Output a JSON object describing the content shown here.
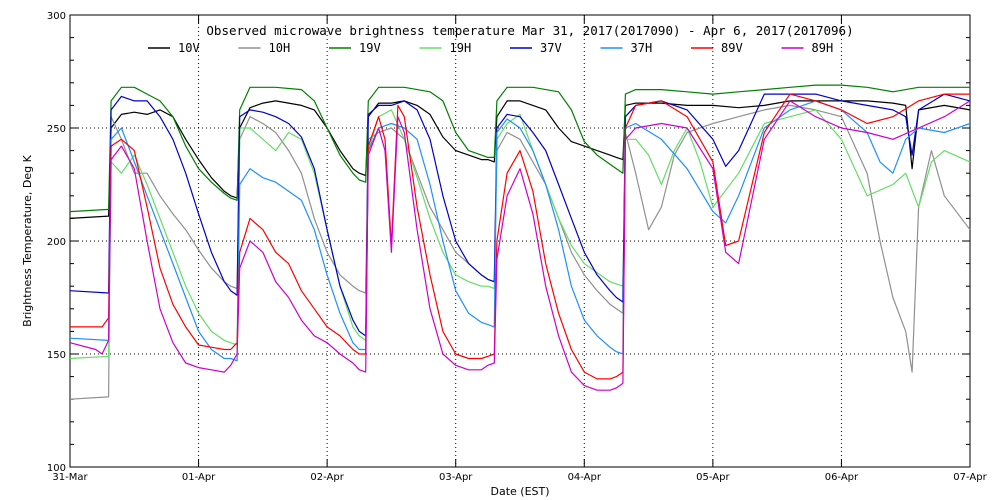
{
  "chart_data": {
    "type": "line",
    "title": "Observed microwave brightness temperature Mar 31, 2017(2017090) - Apr  6, 2017(2017096)",
    "xlabel": "Date (EST)",
    "ylabel": "Brightness Temperature, Deg K",
    "ylim": [
      100,
      300
    ],
    "xlim": [
      0,
      7
    ],
    "yticks": [
      "100",
      "150",
      "200",
      "250",
      "300"
    ],
    "xticks": [
      "31-Mar",
      "01-Apr",
      "02-Apr",
      "03-Apr",
      "04-Apr",
      "05-Apr",
      "06-Apr",
      "07-Apr"
    ],
    "grid": true,
    "legend_position": "top",
    "series": [
      {
        "name": "10V",
        "color": "#000000",
        "x": [
          0,
          0.3,
          0.32,
          0.4,
          0.5,
          0.6,
          0.7,
          0.8,
          0.9,
          1.0,
          1.1,
          1.2,
          1.25,
          1.3,
          1.32,
          1.4,
          1.5,
          1.6,
          1.7,
          1.8,
          1.9,
          2.0,
          2.1,
          2.2,
          2.25,
          2.3,
          2.32,
          2.4,
          2.5,
          2.6,
          2.7,
          2.8,
          2.9,
          3.0,
          3.1,
          3.2,
          3.25,
          3.3,
          3.32,
          3.4,
          3.5,
          3.6,
          3.7,
          3.8,
          3.9,
          4.0,
          4.1,
          4.2,
          4.25,
          4.3,
          4.32,
          4.4,
          4.6,
          4.8,
          5.0,
          5.2,
          5.4,
          5.6,
          5.8,
          6.0,
          6.2,
          6.4,
          6.5,
          6.55,
          6.6,
          6.8,
          7.0
        ],
        "y": [
          210,
          211,
          250,
          256,
          257,
          256,
          258,
          255,
          245,
          236,
          228,
          222,
          220,
          219,
          250,
          259,
          261,
          262,
          261,
          260,
          258,
          250,
          240,
          232,
          230,
          229,
          255,
          261,
          261,
          262,
          260,
          256,
          246,
          240,
          238,
          236,
          236,
          235,
          255,
          262,
          262,
          260,
          258,
          250,
          244,
          242,
          240,
          238,
          237,
          236,
          260,
          261,
          261,
          260,
          260,
          259,
          260,
          262,
          262,
          262,
          262,
          261,
          260,
          232,
          258,
          260,
          258
        ]
      },
      {
        "name": "10H",
        "color": "#909090",
        "x": [
          0,
          0.3,
          0.32,
          0.4,
          0.5,
          0.6,
          0.7,
          0.8,
          0.9,
          1.0,
          1.1,
          1.2,
          1.25,
          1.3,
          1.32,
          1.4,
          1.5,
          1.6,
          1.7,
          1.8,
          1.9,
          2.0,
          2.1,
          2.2,
          2.25,
          2.3,
          2.32,
          2.4,
          2.5,
          2.6,
          2.7,
          2.8,
          2.9,
          3.0,
          3.1,
          3.2,
          3.25,
          3.3,
          3.32,
          3.4,
          3.5,
          3.6,
          3.7,
          3.8,
          3.9,
          4.0,
          4.1,
          4.2,
          4.25,
          4.3,
          4.32,
          4.4,
          4.5,
          4.6,
          4.7,
          4.8,
          5.0,
          5.2,
          5.4,
          5.6,
          5.8,
          6.0,
          6.2,
          6.3,
          6.4,
          6.5,
          6.55,
          6.6,
          6.7,
          6.8,
          7.0
        ],
        "y": [
          130,
          131,
          255,
          245,
          230,
          230,
          220,
          212,
          205,
          196,
          188,
          182,
          180,
          179,
          245,
          255,
          252,
          248,
          240,
          230,
          210,
          195,
          185,
          180,
          178,
          177,
          245,
          248,
          250,
          245,
          230,
          215,
          205,
          195,
          190,
          185,
          183,
          182,
          240,
          248,
          245,
          235,
          225,
          210,
          195,
          185,
          178,
          172,
          170,
          168,
          248,
          230,
          205,
          215,
          238,
          248,
          252,
          255,
          258,
          260,
          258,
          255,
          230,
          200,
          175,
          160,
          142,
          215,
          240,
          220,
          205
        ]
      },
      {
        "name": "19V",
        "color": "#008000",
        "x": [
          0,
          0.3,
          0.32,
          0.4,
          0.5,
          0.6,
          0.7,
          0.8,
          0.9,
          1.0,
          1.1,
          1.2,
          1.25,
          1.3,
          1.32,
          1.4,
          1.6,
          1.8,
          1.9,
          2.0,
          2.1,
          2.2,
          2.25,
          2.3,
          2.32,
          2.4,
          2.6,
          2.8,
          2.9,
          3.0,
          3.1,
          3.2,
          3.25,
          3.3,
          3.32,
          3.4,
          3.6,
          3.8,
          3.9,
          4.0,
          4.1,
          4.2,
          4.25,
          4.3,
          4.32,
          4.4,
          4.6,
          4.8,
          5.0,
          5.2,
          5.4,
          5.6,
          5.8,
          6.0,
          6.2,
          6.4,
          6.6,
          6.8,
          7.0
        ],
        "y": [
          213,
          214,
          262,
          268,
          268,
          265,
          262,
          255,
          242,
          232,
          226,
          221,
          219,
          218,
          258,
          268,
          268,
          267,
          262,
          250,
          238,
          230,
          227,
          226,
          262,
          268,
          268,
          266,
          262,
          248,
          240,
          238,
          237,
          237,
          262,
          268,
          268,
          266,
          258,
          244,
          238,
          234,
          232,
          230,
          265,
          267,
          267,
          266,
          265,
          266,
          267,
          268,
          269,
          269,
          268,
          266,
          268,
          268,
          268
        ]
      },
      {
        "name": "19H",
        "color": "#66dd66",
        "x": [
          0,
          0.3,
          0.32,
          0.4,
          0.5,
          0.6,
          0.7,
          0.8,
          0.9,
          1.0,
          1.1,
          1.2,
          1.25,
          1.3,
          1.32,
          1.4,
          1.5,
          1.6,
          1.7,
          1.8,
          1.9,
          2.0,
          2.1,
          2.2,
          2.25,
          2.3,
          2.32,
          2.4,
          2.5,
          2.6,
          2.7,
          2.8,
          2.9,
          3.0,
          3.1,
          3.2,
          3.25,
          3.3,
          3.32,
          3.4,
          3.5,
          3.6,
          3.7,
          3.8,
          3.9,
          4.0,
          4.1,
          4.2,
          4.25,
          4.3,
          4.32,
          4.4,
          4.5,
          4.6,
          4.7,
          4.8,
          4.9,
          5.0,
          5.2,
          5.4,
          5.6,
          5.8,
          6.0,
          6.2,
          6.4,
          6.5,
          6.6,
          6.7,
          6.8,
          7.0
        ],
        "y": [
          148,
          149,
          235,
          230,
          238,
          225,
          210,
          195,
          180,
          168,
          160,
          156,
          155,
          154,
          250,
          250,
          245,
          240,
          248,
          245,
          230,
          205,
          180,
          162,
          158,
          156,
          240,
          255,
          258,
          245,
          228,
          210,
          195,
          185,
          182,
          180,
          180,
          179,
          245,
          252,
          256,
          240,
          225,
          210,
          198,
          190,
          186,
          182,
          181,
          180,
          245,
          245,
          238,
          225,
          240,
          250,
          235,
          215,
          230,
          252,
          255,
          258,
          245,
          220,
          225,
          230,
          215,
          235,
          240,
          235
        ]
      },
      {
        "name": "37V",
        "color": "#0000cc",
        "x": [
          0,
          0.3,
          0.32,
          0.4,
          0.5,
          0.6,
          0.7,
          0.8,
          0.9,
          1.0,
          1.1,
          1.2,
          1.25,
          1.3,
          1.32,
          1.4,
          1.5,
          1.6,
          1.7,
          1.8,
          1.9,
          2.0,
          2.1,
          2.2,
          2.25,
          2.3,
          2.32,
          2.4,
          2.5,
          2.6,
          2.7,
          2.8,
          2.9,
          3.0,
          3.1,
          3.2,
          3.25,
          3.3,
          3.32,
          3.4,
          3.5,
          3.6,
          3.7,
          3.8,
          3.9,
          4.0,
          4.1,
          4.2,
          4.25,
          4.3,
          4.32,
          4.4,
          4.6,
          4.8,
          5.0,
          5.1,
          5.2,
          5.4,
          5.6,
          5.8,
          6.0,
          6.2,
          6.4,
          6.5,
          6.55,
          6.6,
          6.8,
          7.0
        ],
        "y": [
          178,
          177,
          258,
          264,
          262,
          262,
          255,
          245,
          230,
          212,
          195,
          182,
          178,
          176,
          255,
          258,
          257,
          255,
          252,
          246,
          232,
          205,
          180,
          165,
          160,
          158,
          256,
          260,
          260,
          262,
          258,
          245,
          220,
          200,
          190,
          185,
          183,
          182,
          250,
          256,
          255,
          248,
          240,
          225,
          210,
          195,
          185,
          178,
          175,
          173,
          255,
          260,
          262,
          258,
          245,
          233,
          240,
          265,
          265,
          265,
          262,
          260,
          258,
          255,
          238,
          258,
          265,
          262
        ]
      },
      {
        "name": "37H",
        "color": "#1e90ff",
        "x": [
          0,
          0.3,
          0.32,
          0.4,
          0.5,
          0.6,
          0.7,
          0.8,
          0.9,
          1.0,
          1.1,
          1.2,
          1.25,
          1.3,
          1.32,
          1.4,
          1.5,
          1.6,
          1.7,
          1.8,
          1.9,
          2.0,
          2.1,
          2.2,
          2.25,
          2.3,
          2.32,
          2.4,
          2.5,
          2.6,
          2.7,
          2.8,
          2.9,
          3.0,
          3.1,
          3.2,
          3.25,
          3.3,
          3.32,
          3.4,
          3.5,
          3.6,
          3.7,
          3.8,
          3.9,
          4.0,
          4.1,
          4.2,
          4.25,
          4.3,
          4.32,
          4.4,
          4.6,
          4.8,
          5.0,
          5.1,
          5.2,
          5.4,
          5.6,
          5.8,
          6.0,
          6.2,
          6.3,
          6.4,
          6.5,
          6.6,
          6.8,
          7.0
        ],
        "y": [
          157,
          156,
          245,
          250,
          235,
          220,
          205,
          190,
          175,
          160,
          152,
          148,
          148,
          147,
          225,
          232,
          228,
          226,
          222,
          218,
          205,
          185,
          168,
          155,
          152,
          152,
          240,
          250,
          252,
          250,
          245,
          225,
          200,
          178,
          168,
          164,
          163,
          162,
          248,
          254,
          250,
          240,
          225,
          205,
          180,
          165,
          158,
          153,
          151,
          150,
          250,
          252,
          245,
          232,
          213,
          208,
          220,
          250,
          258,
          262,
          258,
          248,
          235,
          230,
          245,
          250,
          248,
          252
        ]
      },
      {
        "name": "89V",
        "color": "#ff0000",
        "x": [
          0,
          0.25,
          0.3,
          0.32,
          0.4,
          0.5,
          0.6,
          0.7,
          0.8,
          0.9,
          1.0,
          1.1,
          1.2,
          1.25,
          1.3,
          1.32,
          1.4,
          1.5,
          1.6,
          1.7,
          1.8,
          1.9,
          2.0,
          2.1,
          2.2,
          2.25,
          2.3,
          2.32,
          2.4,
          2.45,
          2.5,
          2.55,
          2.6,
          2.7,
          2.8,
          2.9,
          3.0,
          3.1,
          3.2,
          3.25,
          3.3,
          3.32,
          3.4,
          3.5,
          3.6,
          3.7,
          3.8,
          3.9,
          4.0,
          4.1,
          4.2,
          4.25,
          4.3,
          4.32,
          4.4,
          4.6,
          4.8,
          5.0,
          5.1,
          5.2,
          5.4,
          5.6,
          5.8,
          6.0,
          6.2,
          6.4,
          6.6,
          6.8,
          7.0
        ],
        "y": [
          162,
          162,
          166,
          242,
          245,
          240,
          215,
          188,
          172,
          162,
          154,
          153,
          152,
          152,
          155,
          195,
          210,
          205,
          195,
          190,
          178,
          170,
          162,
          158,
          152,
          150,
          150,
          242,
          255,
          245,
          198,
          260,
          255,
          215,
          185,
          160,
          150,
          148,
          148,
          149,
          150,
          200,
          230,
          240,
          222,
          190,
          168,
          152,
          142,
          139,
          139,
          140,
          142,
          250,
          260,
          262,
          255,
          235,
          198,
          200,
          248,
          265,
          262,
          258,
          252,
          255,
          262,
          265,
          265
        ]
      },
      {
        "name": "89H",
        "color": "#cc00cc",
        "x": [
          0,
          0.2,
          0.25,
          0.3,
          0.32,
          0.4,
          0.5,
          0.6,
          0.7,
          0.8,
          0.9,
          1.0,
          1.1,
          1.2,
          1.25,
          1.3,
          1.32,
          1.4,
          1.5,
          1.6,
          1.7,
          1.8,
          1.9,
          2.0,
          2.1,
          2.2,
          2.25,
          2.3,
          2.32,
          2.4,
          2.45,
          2.5,
          2.55,
          2.6,
          2.7,
          2.8,
          2.9,
          3.0,
          3.1,
          3.2,
          3.25,
          3.3,
          3.32,
          3.4,
          3.5,
          3.6,
          3.7,
          3.8,
          3.9,
          4.0,
          4.1,
          4.2,
          4.25,
          4.3,
          4.32,
          4.4,
          4.6,
          4.8,
          5.0,
          5.1,
          5.2,
          5.4,
          5.6,
          5.8,
          6.0,
          6.2,
          6.4,
          6.6,
          6.8,
          7.0
        ],
        "y": [
          155,
          152,
          150,
          156,
          236,
          242,
          232,
          200,
          170,
          155,
          146,
          144,
          143,
          142,
          145,
          150,
          188,
          200,
          195,
          182,
          175,
          165,
          158,
          155,
          150,
          146,
          143,
          142,
          238,
          250,
          240,
          195,
          255,
          248,
          205,
          170,
          150,
          145,
          143,
          143,
          145,
          146,
          192,
          220,
          232,
          212,
          180,
          158,
          142,
          136,
          134,
          134,
          135,
          137,
          245,
          250,
          252,
          250,
          232,
          195,
          190,
          245,
          262,
          255,
          250,
          248,
          245,
          250,
          255,
          262
        ]
      }
    ]
  }
}
